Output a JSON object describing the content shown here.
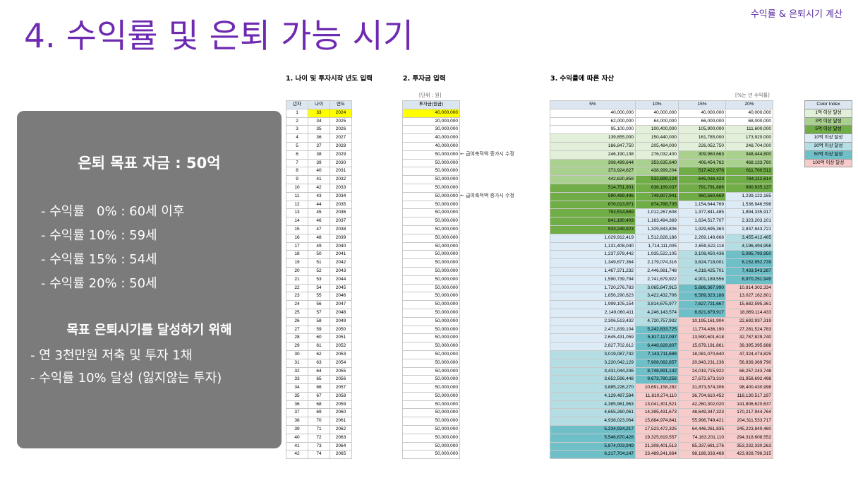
{
  "slide": {
    "title": "4. 수익률 및 은퇴 가능 시기",
    "corner_label": "수익률 & 은퇴시기 계산"
  },
  "panel": {
    "goal": "은퇴 목표 자금 : 50억",
    "returns": [
      "- 수익률   0% : 60세 이후",
      "- 수익률 10% : 59세",
      "- 수익률 15% : 54세",
      "- 수익률 20% : 50세"
    ],
    "subtitle": "목표 은퇴시기를 달성하기 위해",
    "steps": [
      "- 연 3천만원 저축 및 투자 1채",
      "- 수익률 10% 달성 (잃지않는 투자)"
    ]
  },
  "sheet": {
    "section1": "1. 나이 및 투자시작 년도 입력",
    "section2": "2. 투자금 입력",
    "section3": "3. 수익률에 따른 자산",
    "unit_note": "[단위 : 원]",
    "rate_note": "[%는 년 수익률]",
    "t1_headers": [
      "년차",
      "나이",
      "연도"
    ],
    "t2_header": "투자금(원금)",
    "t3_headers": [
      "5%",
      "10%",
      "15%",
      "20%"
    ],
    "annotation1": "← 급여축적액 증가시 수정",
    "annotation2": "← 급여축적액 증가시 수정",
    "t2_values": [
      "40,000,000",
      "20,000,000",
      "30,000,000",
      "40,000,000",
      "40,000,000",
      "50,000,000",
      "50,000,000",
      "50,000,000",
      "50,000,000",
      "50,000,000",
      "50,000,000",
      "50,000,000",
      "50,000,000",
      "50,000,000",
      "50,000,000",
      "50,000,000",
      "50,000,000",
      "50,000,000",
      "50,000,000",
      "50,000,000",
      "50,000,000",
      "50,000,000",
      "50,000,000",
      "50,000,000",
      "50,000,000",
      "50,000,000",
      "50,000,000",
      "50,000,000",
      "50,000,000",
      "50,000,000",
      "50,000,000",
      "50,000,000",
      "50,000,000",
      "50,000,000",
      "50,000,000",
      "50,000,000",
      "50,000,000",
      "50,000,000",
      "50,000,000",
      "50,000,000",
      "50,000,000",
      "50,000,000"
    ],
    "rows": [
      [
        "40,000,000",
        "40,000,000",
        "40,000,000",
        "40,000,000"
      ],
      [
        "62,000,000",
        "64,000,000",
        "66,000,000",
        "68,000,000"
      ],
      [
        "95,100,000",
        "100,400,000",
        "105,900,000",
        "111,600,000"
      ],
      [
        "139,855,000",
        "150,440,000",
        "161,785,000",
        "173,920,000"
      ],
      [
        "186,847,750",
        "205,484,000",
        "226,052,750",
        "248,704,000"
      ],
      [
        "246,190,138",
        "276,032,400",
        "309,960,663",
        "348,444,800"
      ],
      [
        "308,499,644",
        "353,635,640",
        "406,454,762",
        "468,133,760"
      ],
      [
        "373,924,627",
        "438,999,204",
        "517,422,976",
        "611,760,512"
      ],
      [
        "442,620,858",
        "532,899,124",
        "645,036,423",
        "784,112,614"
      ],
      [
        "514,751,901",
        "636,189,037",
        "791,791,886",
        "990,935,137"
      ],
      [
        "590,489,496",
        "749,807,941",
        "960,560,669",
        "1,239,122,165"
      ],
      [
        "670,013,971",
        "874,788,735",
        "1,154,644,769",
        "1,536,946,598"
      ],
      [
        "753,514,669",
        "1,012,267,608",
        "1,377,841,485",
        "1,894,335,917"
      ],
      [
        "841,190,403",
        "1,163,494,369",
        "1,634,517,707",
        "2,323,203,101"
      ],
      [
        "933,249,923",
        "1,329,843,806",
        "1,929,695,363",
        "2,837,843,721"
      ],
      [
        "1,029,912,419",
        "1,512,828,186",
        "2,269,149,668",
        "3,455,412,465"
      ],
      [
        "1,131,408,040",
        "1,714,111,005",
        "2,659,522,118",
        "4,196,494,958"
      ],
      [
        "1,237,978,442",
        "1,935,522,105",
        "3,108,450,436",
        "5,085,793,950"
      ],
      [
        "1,349,877,364",
        "2,179,074,316",
        "3,624,718,001",
        "6,152,952,739"
      ],
      [
        "1,467,371,232",
        "2,446,981,748",
        "4,218,425,701",
        "7,433,543,287"
      ],
      [
        "1,590,739,794",
        "2,741,679,922",
        "4,901,189,556",
        "8,970,251,945"
      ],
      [
        "1,720,276,783",
        "3,065,847,915",
        "5,686,367,990",
        "10,814,302,334"
      ],
      [
        "1,856,290,623",
        "3,422,432,706",
        "6,589,323,188",
        "13,027,162,801"
      ],
      [
        "1,999,105,154",
        "3,814,675,977",
        "7,627,721,667",
        "15,682,595,361"
      ],
      [
        "2,149,060,411",
        "4,246,143,574",
        "8,821,879,917",
        "18,869,114,433"
      ],
      [
        "2,306,513,432",
        "4,720,757,932",
        "10,195,161,904",
        "22,692,937,319"
      ],
      [
        "2,471,839,104",
        "5,242,833,725",
        "11,774,436,190",
        "27,281,524,783"
      ],
      [
        "2,645,431,059",
        "5,817,117,097",
        "13,590,601,618",
        "32,787,829,740"
      ],
      [
        "2,827,702,612",
        "6,448,828,807",
        "15,679,191,861",
        "39,395,395,688"
      ],
      [
        "3,019,087,742",
        "7,143,711,688",
        "18,081,070,640",
        "47,324,474,825"
      ],
      [
        "3,220,042,129",
        "7,908,082,857",
        "20,843,231,236",
        "56,839,369,790"
      ],
      [
        "3,431,044,236",
        "8,748,891,142",
        "24,019,715,922",
        "68,257,243,748"
      ],
      [
        "3,652,596,448",
        "9,673,780,256",
        "27,672,673,310",
        "81,958,692,498"
      ],
      [
        "3,885,226,270",
        "10,691,158,282",
        "31,873,574,306",
        "98,400,430,998"
      ],
      [
        "4,129,487,584",
        "11,810,274,110",
        "36,704,610,452",
        "118,130,517,197"
      ],
      [
        "4,385,961,963",
        "13,041,301,521",
        "42,260,302,020",
        "141,806,620,637"
      ],
      [
        "4,655,260,061",
        "14,395,431,673",
        "48,649,347,323",
        "170,217,944,764"
      ],
      [
        "4,938,023,064",
        "15,884,974,841",
        "55,996,749,421",
        "204,311,533,717"
      ],
      [
        "5,234,924,217",
        "17,523,472,325",
        "64,446,261,835",
        "245,223,840,460"
      ],
      [
        "5,546,670,428",
        "19,325,819,557",
        "74,163,201,110",
        "294,318,608,552"
      ],
      [
        "5,874,003,949",
        "21,308,401,513",
        "85,337,681,276",
        "353,232,330,263"
      ],
      [
        "6,217,704,147",
        "23,489,241,664",
        "98,188,333,468",
        "423,928,796,315"
      ]
    ],
    "legend_title": "Color Index",
    "legend": [
      {
        "label": "1억 이상 달성",
        "color": "#e2f0d9"
      },
      {
        "label": "3억 이상 달성",
        "color": "#a9d08e"
      },
      {
        "label": "5억 이상 달성",
        "color": "#70ad47"
      },
      {
        "label": "10억 이상 달성",
        "color": "#ddebf7"
      },
      {
        "label": "30억 이상 달성",
        "color": "#b4dde4"
      },
      {
        "label": "50억 이상 달성",
        "color": "#6fbfc9"
      },
      {
        "label": "100억 이상 달성",
        "color": "#f8cbcb"
      }
    ]
  }
}
